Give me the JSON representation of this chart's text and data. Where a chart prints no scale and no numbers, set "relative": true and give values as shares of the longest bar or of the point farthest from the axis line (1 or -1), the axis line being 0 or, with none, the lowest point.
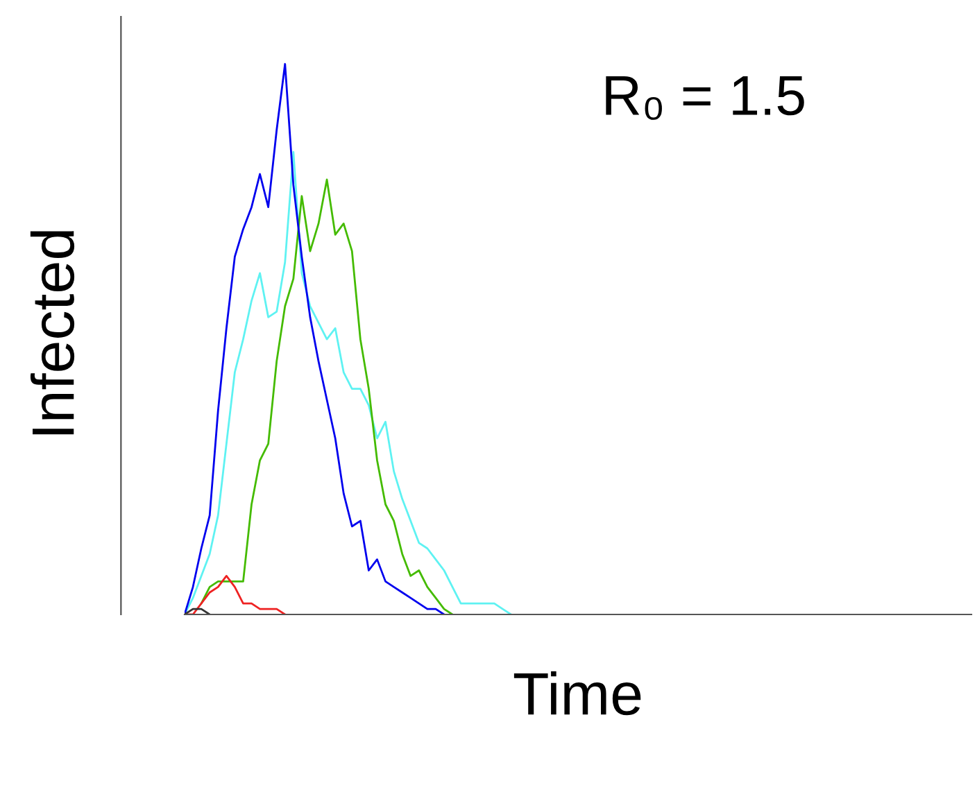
{
  "chart_data": {
    "type": "line",
    "relative": true,
    "xlabel": "Time",
    "ylabel": "Infected",
    "annotations": [
      "R₀ = 1.5"
    ],
    "grid": false,
    "line_style": "solid",
    "marker": "none",
    "categories": [
      null,
      null,
      null,
      null,
      null,
      null,
      null,
      null,
      null,
      null,
      null,
      null,
      null,
      null,
      null,
      null,
      null,
      null,
      null,
      null,
      null,
      null,
      null,
      null,
      null,
      null,
      null,
      null,
      null,
      null,
      null,
      null,
      null,
      null,
      null,
      null,
      null,
      null,
      null,
      null,
      null,
      null,
      null,
      null,
      null,
      null,
      null,
      null,
      null,
      null,
      null,
      null,
      null,
      null,
      null,
      null,
      null,
      null,
      null,
      null,
      null,
      null,
      null,
      null,
      null,
      null,
      null,
      null,
      null,
      null,
      null,
      null,
      null,
      null,
      null,
      null,
      null,
      null,
      null,
      null,
      null,
      null,
      null,
      null,
      null,
      null,
      null,
      null,
      null,
      null,
      null,
      null,
      null,
      null,
      null
    ],
    "series": [
      {
        "color": "#5ef2f2",
        "values": [
          0,
          0.03,
          0.07,
          0.11,
          0.18,
          0.31,
          0.44,
          0.5,
          0.57,
          0.62,
          0.54,
          0.55,
          0.64,
          0.84,
          0.62,
          0.56,
          0.53,
          0.5,
          0.52,
          0.44,
          0.41,
          0.41,
          0.38,
          0.32,
          0.35,
          0.26,
          0.21,
          0.17,
          0.13,
          0.12,
          0.1,
          0.08,
          0.05,
          0.02,
          0.02,
          0.02,
          0.02,
          0.02,
          0.01,
          0,
          null,
          null,
          null,
          null,
          null,
          null,
          null,
          null,
          null,
          null,
          null,
          null,
          null,
          null,
          null,
          null,
          null,
          null,
          null,
          null,
          null,
          null,
          null,
          null,
          null,
          null,
          null,
          null,
          null,
          null,
          null,
          null,
          null,
          null,
          null,
          null,
          null,
          null,
          null,
          null,
          null,
          null,
          null,
          null,
          null,
          null,
          null,
          null,
          null,
          null,
          null,
          null,
          null,
          null,
          null
        ]
      },
      {
        "color": "#44bb00",
        "values": [
          null,
          null,
          0.02,
          0.05,
          0.06,
          0.06,
          0.06,
          0.06,
          0.2,
          0.28,
          0.31,
          0.46,
          0.56,
          0.61,
          0.76,
          0.66,
          0.71,
          0.79,
          0.69,
          0.71,
          0.66,
          0.5,
          0.41,
          0.28,
          0.2,
          0.17,
          0.11,
          0.07,
          0.08,
          0.05,
          0.03,
          0.01,
          0,
          null,
          null,
          null,
          null,
          null,
          null,
          null,
          null,
          null,
          null,
          null,
          null,
          null,
          null,
          null,
          null,
          null,
          null,
          null,
          null,
          null,
          null,
          null,
          null,
          null,
          null,
          null,
          null,
          null,
          null,
          null,
          null,
          null,
          null,
          null,
          null,
          null,
          null,
          null,
          null,
          null,
          null,
          null,
          null,
          null,
          null,
          null,
          null,
          null,
          null,
          null,
          null,
          null,
          null,
          null,
          null,
          null,
          null,
          null,
          null,
          null,
          null
        ]
      },
      {
        "color": "#0000ee",
        "values": [
          0,
          0.05,
          0.12,
          0.18,
          0.37,
          0.52,
          0.65,
          0.7,
          0.74,
          0.8,
          0.74,
          0.88,
          1,
          0.78,
          0.65,
          0.54,
          0.46,
          0.39,
          0.32,
          0.22,
          0.16,
          0.17,
          0.08,
          0.1,
          0.06,
          0.05,
          0.04,
          0.03,
          0.02,
          0.01,
          0.01,
          0,
          null,
          null,
          null,
          null,
          null,
          null,
          null,
          null,
          null,
          null,
          null,
          null,
          null,
          null,
          null,
          null,
          null,
          null,
          null,
          null,
          null,
          null,
          null,
          null,
          null,
          null,
          null,
          null,
          null,
          null,
          null,
          null,
          null,
          null,
          null,
          null,
          null,
          null,
          null,
          null,
          null,
          null,
          null,
          null,
          null,
          null,
          null,
          null,
          null,
          null,
          null,
          null,
          null,
          null,
          null,
          null,
          null,
          null,
          null,
          null,
          null,
          null,
          null
        ]
      },
      {
        "color": "#ee2222",
        "values": [
          0,
          0,
          0.02,
          0.04,
          0.05,
          0.07,
          0.05,
          0.02,
          0.02,
          0.01,
          0.01,
          0.01,
          0,
          null,
          null,
          null,
          null,
          null,
          null,
          null,
          null,
          null,
          null,
          null,
          null,
          null,
          null,
          null,
          null,
          null,
          null,
          null,
          null,
          null,
          null,
          null,
          null,
          null,
          null,
          null,
          null,
          null,
          null,
          null,
          null,
          null,
          null,
          null,
          null,
          null,
          null,
          null,
          null,
          null,
          null,
          null,
          null,
          null,
          null,
          null,
          null,
          null,
          null,
          null,
          null,
          null,
          null,
          null,
          null,
          null,
          null,
          null,
          null,
          null,
          null,
          null,
          null,
          null,
          null,
          null,
          null,
          null,
          null,
          null,
          null,
          null,
          null,
          null,
          null,
          null,
          null,
          null,
          null,
          null,
          null
        ]
      },
      {
        "color": "#333333",
        "values": [
          0,
          0.01,
          0.01,
          0,
          null,
          null,
          null,
          null,
          null,
          null,
          null,
          null,
          null,
          null,
          null,
          null,
          null,
          null,
          null,
          null,
          null,
          null,
          null,
          null,
          null,
          null,
          null,
          null,
          null,
          null,
          null,
          null,
          null,
          null,
          null,
          null,
          null,
          null,
          null,
          null,
          null,
          null,
          null,
          null,
          null,
          null,
          null,
          null,
          null,
          null,
          null,
          null,
          null,
          null,
          null,
          null,
          null,
          null,
          null,
          null,
          null,
          null,
          null,
          null,
          null,
          null,
          null,
          null,
          null,
          null,
          null,
          null,
          null,
          null,
          null,
          null,
          null,
          null,
          null,
          null,
          null,
          null,
          null,
          null,
          null,
          null,
          null,
          null,
          null,
          null,
          null,
          null,
          null,
          null,
          null
        ]
      }
    ]
  }
}
